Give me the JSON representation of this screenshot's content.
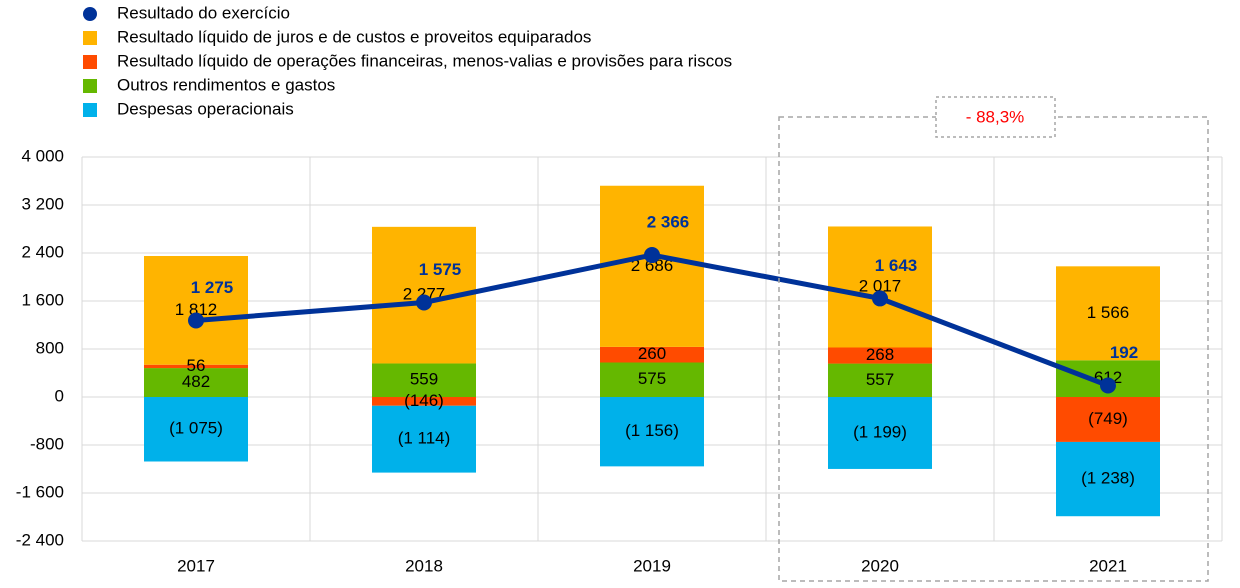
{
  "chart_data": {
    "type": "bar",
    "categories": [
      "2017",
      "2018",
      "2019",
      "2020",
      "2021"
    ],
    "series": [
      {
        "name": "Resultado do exercício",
        "type": "line",
        "color": "#003299",
        "values": [
          1275,
          1575,
          2366,
          1643,
          192
        ],
        "value_labels": [
          "1 275",
          "1 575",
          "2 366",
          "1 643",
          "192"
        ]
      },
      {
        "name": "Resultado líquido de juros e de custos e proveitos equiparados",
        "color": "#FFB400",
        "values": [
          1812,
          2277,
          2686,
          2017,
          1566
        ],
        "value_labels": [
          "1 812",
          "2 277",
          "2 686",
          "2 017",
          "1 566"
        ]
      },
      {
        "name": "Resultado líquido de operações financeiras, menos-valias e provisões para riscos",
        "color": "#FF4B00",
        "values": [
          56,
          -146,
          260,
          268,
          -749
        ],
        "value_labels": [
          "56",
          "(146)",
          "260",
          "268",
          "(749)"
        ]
      },
      {
        "name": "Outros rendimentos e gastos",
        "color": "#65B800",
        "values": [
          482,
          559,
          575,
          557,
          612
        ],
        "value_labels": [
          "482",
          "559",
          "575",
          "557",
          "612"
        ]
      },
      {
        "name": "Despesas operacionais",
        "color": "#00B1EA",
        "values": [
          -1075,
          -1114,
          -1156,
          -1199,
          -1238
        ],
        "value_labels": [
          "(1 075)",
          "(1 114)",
          "(1 156)",
          "(1 199)",
          "(1 238)"
        ]
      }
    ],
    "ylim": [
      -2400,
      4000
    ],
    "yticks": [
      {
        "value": -2400,
        "label": "-2 400"
      },
      {
        "value": -1600,
        "label": "-1 600"
      },
      -800,
      0,
      800,
      {
        "value": 1600,
        "label": "1 600"
      },
      {
        "value": 2400,
        "label": "2 400"
      },
      {
        "value": 3200,
        "label": "3 200"
      },
      {
        "value": 4000,
        "label": "4 000"
      }
    ],
    "grid": true,
    "annotation": "- 88,3%"
  }
}
